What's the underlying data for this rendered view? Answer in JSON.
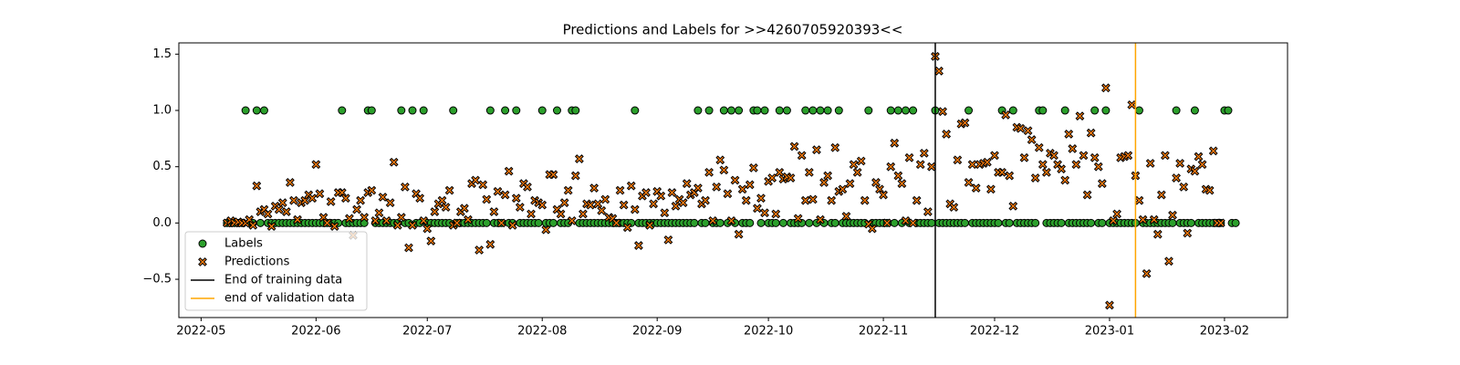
{
  "chart_data": {
    "type": "scatter",
    "title": "Predictions and Labels for >>4260705920393<<",
    "x": [
      "2022-05-08",
      "2022-05-09",
      "2022-05-10",
      "2022-05-11",
      "2022-05-12",
      "2022-05-13",
      "2022-05-14",
      "2022-05-15",
      "2022-05-16",
      "2022-05-17",
      "2022-05-18",
      "2022-05-19",
      "2022-05-20",
      "2022-05-21",
      "2022-05-22",
      "2022-05-23",
      "2022-05-24",
      "2022-05-25",
      "2022-05-26",
      "2022-05-27",
      "2022-05-28",
      "2022-05-29",
      "2022-05-30",
      "2022-05-31",
      "2022-06-01",
      "2022-06-02",
      "2022-06-03",
      "2022-06-04",
      "2022-06-05",
      "2022-06-06",
      "2022-06-07",
      "2022-06-08",
      "2022-06-09",
      "2022-06-10",
      "2022-06-11",
      "2022-06-12",
      "2022-06-13",
      "2022-06-14",
      "2022-06-15",
      "2022-06-16",
      "2022-06-17",
      "2022-06-18",
      "2022-06-19",
      "2022-06-20",
      "2022-06-21",
      "2022-06-22",
      "2022-06-23",
      "2022-06-24",
      "2022-06-25",
      "2022-06-26",
      "2022-06-27",
      "2022-06-28",
      "2022-06-29",
      "2022-06-30",
      "2022-07-01",
      "2022-07-02",
      "2022-07-03",
      "2022-07-04",
      "2022-07-05",
      "2022-07-06",
      "2022-07-07",
      "2022-07-08",
      "2022-07-09",
      "2022-07-10",
      "2022-07-11",
      "2022-07-12",
      "2022-07-13",
      "2022-07-14",
      "2022-07-15",
      "2022-07-16",
      "2022-07-17",
      "2022-07-18",
      "2022-07-19",
      "2022-07-20",
      "2022-07-21",
      "2022-07-22",
      "2022-07-23",
      "2022-07-24",
      "2022-07-25",
      "2022-07-26",
      "2022-07-27",
      "2022-07-28",
      "2022-07-29",
      "2022-07-30",
      "2022-07-31",
      "2022-08-01",
      "2022-08-02",
      "2022-08-03",
      "2022-08-04",
      "2022-08-05",
      "2022-08-06",
      "2022-08-07",
      "2022-08-08",
      "2022-08-09",
      "2022-08-10",
      "2022-08-11",
      "2022-08-12",
      "2022-08-13",
      "2022-08-14",
      "2022-08-15",
      "2022-08-16",
      "2022-08-17",
      "2022-08-18",
      "2022-08-19",
      "2022-08-20",
      "2022-08-21",
      "2022-08-22",
      "2022-08-23",
      "2022-08-24",
      "2022-08-25",
      "2022-08-26",
      "2022-08-27",
      "2022-08-28",
      "2022-08-29",
      "2022-08-30",
      "2022-08-31",
      "2022-09-01",
      "2022-09-02",
      "2022-09-03",
      "2022-09-04",
      "2022-09-05",
      "2022-09-06",
      "2022-09-07",
      "2022-09-08",
      "2022-09-09",
      "2022-09-10",
      "2022-09-11",
      "2022-09-12",
      "2022-09-13",
      "2022-09-14",
      "2022-09-15",
      "2022-09-16",
      "2022-09-17",
      "2022-09-18",
      "2022-09-19",
      "2022-09-20",
      "2022-09-21",
      "2022-09-22",
      "2022-09-23",
      "2022-09-24",
      "2022-09-25",
      "2022-09-26",
      "2022-09-27",
      "2022-09-28",
      "2022-09-29",
      "2022-09-30",
      "2022-10-01",
      "2022-10-02",
      "2022-10-03",
      "2022-10-04",
      "2022-10-05",
      "2022-10-06",
      "2022-10-07",
      "2022-10-08",
      "2022-10-09",
      "2022-10-10",
      "2022-10-11",
      "2022-10-12",
      "2022-10-13",
      "2022-10-14",
      "2022-10-15",
      "2022-10-16",
      "2022-10-17",
      "2022-10-18",
      "2022-10-19",
      "2022-10-20",
      "2022-10-21",
      "2022-10-22",
      "2022-10-23",
      "2022-10-24",
      "2022-10-25",
      "2022-10-26",
      "2022-10-27",
      "2022-10-28",
      "2022-10-29",
      "2022-10-30",
      "2022-10-31",
      "2022-11-01",
      "2022-11-02",
      "2022-11-03",
      "2022-11-04",
      "2022-11-05",
      "2022-11-06",
      "2022-11-07",
      "2022-11-08",
      "2022-11-09",
      "2022-11-10",
      "2022-11-11",
      "2022-11-12",
      "2022-11-13",
      "2022-11-14",
      "2022-11-15",
      "2022-11-16",
      "2022-11-17",
      "2022-11-18",
      "2022-11-19",
      "2022-11-20",
      "2022-11-21",
      "2022-11-22",
      "2022-11-23",
      "2022-11-24",
      "2022-11-25",
      "2022-11-26",
      "2022-11-27",
      "2022-11-28",
      "2022-11-29",
      "2022-11-30",
      "2022-12-01",
      "2022-12-02",
      "2022-12-03",
      "2022-12-04",
      "2022-12-05",
      "2022-12-06",
      "2022-12-07",
      "2022-12-08",
      "2022-12-09",
      "2022-12-10",
      "2022-12-11",
      "2022-12-12",
      "2022-12-13",
      "2022-12-14",
      "2022-12-15",
      "2022-12-16",
      "2022-12-17",
      "2022-12-18",
      "2022-12-19",
      "2022-12-20",
      "2022-12-21",
      "2022-12-22",
      "2022-12-23",
      "2022-12-24",
      "2022-12-25",
      "2022-12-26",
      "2022-12-27",
      "2022-12-28",
      "2022-12-29",
      "2022-12-30",
      "2022-12-31",
      "2023-01-01",
      "2023-01-02",
      "2023-01-03",
      "2023-01-04",
      "2023-01-05",
      "2023-01-06",
      "2023-01-07",
      "2023-01-08",
      "2023-01-09",
      "2023-01-10",
      "2023-01-11",
      "2023-01-12",
      "2023-01-13",
      "2023-01-14",
      "2023-01-15",
      "2023-01-16",
      "2023-01-17",
      "2023-01-18",
      "2023-01-19",
      "2023-01-20",
      "2023-01-21",
      "2023-01-22",
      "2023-01-23",
      "2023-01-24",
      "2023-01-25",
      "2023-01-26",
      "2023-01-27",
      "2023-01-28",
      "2023-01-29",
      "2023-01-30",
      "2023-01-31",
      "2023-02-01",
      "2023-02-02",
      "2023-02-03",
      "2023-02-04"
    ],
    "series": [
      {
        "name": "Labels",
        "color": "#2ca02c",
        "marker": "o",
        "values": [
          0,
          0,
          0,
          0,
          0,
          1,
          0,
          0,
          1,
          0,
          1,
          0,
          0,
          0,
          0,
          0,
          0,
          0,
          0,
          0,
          0,
          0,
          0,
          0,
          0,
          0,
          0,
          0,
          0,
          0,
          0,
          1,
          0,
          0,
          0,
          0,
          0,
          0,
          1,
          1,
          0,
          0,
          0,
          0,
          0,
          0,
          0,
          1,
          0,
          0,
          1,
          0,
          0,
          1,
          0,
          0,
          0,
          0,
          0,
          0,
          0,
          1,
          0,
          0,
          0,
          0,
          0,
          0,
          0,
          0,
          0,
          1,
          0,
          0,
          0,
          1,
          0,
          0,
          1,
          0,
          0,
          0,
          0,
          0,
          0,
          1,
          0,
          0,
          0,
          1,
          0,
          0,
          0,
          1,
          1,
          0,
          0,
          0,
          0,
          0,
          0,
          0,
          0,
          0,
          0,
          0,
          0,
          0,
          0,
          0,
          1,
          0,
          0,
          0,
          0,
          0,
          0,
          0,
          0,
          0,
          0,
          0,
          0,
          0,
          0,
          0,
          0,
          1,
          0,
          0,
          1,
          0,
          0,
          0,
          1,
          0,
          1,
          0,
          1,
          0,
          0,
          0,
          1,
          1,
          0,
          1,
          0,
          0,
          0,
          1,
          0,
          1,
          0,
          0,
          0,
          0,
          1,
          0,
          1,
          0,
          1,
          0,
          1,
          0,
          0,
          1,
          0,
          0,
          0,
          0,
          0,
          0,
          0,
          1,
          0,
          0,
          0,
          0,
          0,
          1,
          0,
          1,
          0,
          1,
          0,
          1,
          0,
          0,
          0,
          0,
          0,
          1,
          0,
          0,
          0,
          0,
          0,
          0,
          0,
          0,
          1,
          0,
          0,
          0,
          0,
          0,
          0,
          0,
          0,
          1,
          0,
          0,
          1,
          0,
          0,
          0,
          0,
          0,
          0,
          1,
          1,
          0,
          0,
          0,
          0,
          0,
          1,
          0,
          0,
          0,
          0,
          0,
          0,
          0,
          1,
          0,
          0,
          1,
          0,
          0,
          0,
          0,
          0,
          0,
          0,
          0,
          1,
          0,
          0,
          0,
          0,
          0,
          0,
          0,
          0,
          0,
          1,
          0,
          0,
          0,
          0,
          1,
          0,
          0,
          0,
          0,
          0,
          0,
          0,
          1,
          1,
          0,
          0
        ]
      },
      {
        "name": "Predictions",
        "color": "#ff7f0e",
        "marker": "X",
        "values": [
          0.0,
          0.02,
          0.0,
          0.01,
          0.0,
          0.0,
          0.03,
          -0.02,
          0.33,
          0.1,
          0.12,
          0.08,
          -0.03,
          0.15,
          0.12,
          0.18,
          0.1,
          0.36,
          0.2,
          0.03,
          0.18,
          0.2,
          0.25,
          0.22,
          0.52,
          0.26,
          0.05,
          0.0,
          0.19,
          -0.03,
          0.27,
          0.27,
          0.22,
          0.04,
          -0.11,
          0.12,
          0.2,
          0.05,
          0.27,
          0.29,
          0.02,
          0.09,
          0.23,
          0.02,
          0.18,
          0.54,
          -0.02,
          0.05,
          0.32,
          -0.22,
          -0.02,
          0.26,
          0.22,
          0.02,
          -0.05,
          -0.16,
          0.1,
          0.17,
          0.2,
          0.14,
          0.29,
          -0.02,
          0.0,
          0.1,
          0.13,
          0.03,
          0.35,
          0.38,
          -0.24,
          0.34,
          0.21,
          -0.19,
          0.1,
          0.28,
          0.0,
          0.25,
          0.46,
          -0.02,
          0.22,
          0.14,
          0.35,
          0.32,
          0.08,
          0.2,
          0.18,
          0.16,
          -0.06,
          0.43,
          0.43,
          0.12,
          0.08,
          0.18,
          0.29,
          0.02,
          0.42,
          0.57,
          0.08,
          0.17,
          0.16,
          0.31,
          0.17,
          0.11,
          0.21,
          0.05,
          0.04,
          0.0,
          0.29,
          0.16,
          -0.04,
          0.33,
          0.12,
          -0.2,
          0.24,
          0.27,
          -0.02,
          0.17,
          0.28,
          0.24,
          0.09,
          -0.15,
          0.27,
          0.15,
          0.21,
          0.18,
          0.35,
          0.25,
          0.27,
          0.31,
          0.17,
          0.2,
          0.45,
          0.02,
          0.32,
          0.56,
          0.47,
          0.26,
          0.02,
          0.38,
          -0.1,
          0.3,
          0.2,
          0.34,
          0.49,
          0.13,
          0.22,
          0.09,
          0.37,
          0.4,
          0.08,
          0.45,
          0.39,
          0.41,
          0.4,
          0.68,
          0.04,
          0.6,
          0.2,
          0.45,
          0.21,
          0.65,
          0.03,
          0.36,
          0.42,
          0.2,
          0.67,
          0.28,
          0.3,
          0.06,
          0.35,
          0.52,
          0.45,
          0.55,
          0.2,
          -0.01,
          -0.05,
          0.36,
          0.3,
          0.25,
          0.0,
          0.5,
          0.71,
          0.42,
          0.35,
          0.02,
          0.58,
          0.0,
          0.2,
          0.52,
          0.62,
          0.1,
          0.5,
          1.48,
          1.35,
          0.99,
          0.79,
          0.17,
          0.14,
          0.56,
          0.88,
          0.89,
          0.36,
          0.52,
          0.31,
          0.52,
          0.53,
          0.54,
          0.3,
          0.6,
          0.45,
          0.45,
          0.96,
          0.42,
          0.15,
          0.85,
          0.84,
          0.58,
          0.82,
          0.74,
          0.4,
          0.67,
          0.52,
          0.45,
          0.62,
          0.6,
          0.52,
          0.48,
          0.38,
          0.79,
          0.66,
          0.52,
          0.95,
          0.6,
          0.25,
          0.8,
          0.58,
          0.5,
          0.35,
          1.2,
          -0.73,
          0.02,
          0.08,
          0.58,
          0.59,
          0.6,
          1.05,
          0.42,
          0.2,
          0.03,
          -0.45,
          0.53,
          0.03,
          -0.1,
          0.25,
          0.6,
          -0.34,
          0.07,
          0.4,
          0.53,
          0.32,
          -0.09,
          0.48,
          0.46,
          0.59,
          0.52,
          0.3,
          0.29,
          0.64,
          0.0,
          0.0,
          null,
          null,
          null,
          null
        ]
      }
    ],
    "vlines": [
      {
        "name": "End of training data",
        "x": "2022-11-15",
        "color": "#000000"
      },
      {
        "name": "end of validation data",
        "x": "2023-01-08",
        "color": "#ffa500"
      }
    ],
    "xlim": [
      "2022-04-25",
      "2023-02-18"
    ],
    "xticks": [
      "2022-05",
      "2022-06",
      "2022-07",
      "2022-08",
      "2022-09",
      "2022-10",
      "2022-11",
      "2022-12",
      "2023-01",
      "2023-02"
    ],
    "ylim": [
      -0.84,
      1.6
    ],
    "yticks": [
      1.5,
      {
        "value": 1,
        "label": "1.0"
      },
      0.5,
      {
        "value": 0,
        "label": "0.0"
      },
      {
        "value": -0.5,
        "label": "−0.5"
      }
    ],
    "legend": "lower left"
  }
}
